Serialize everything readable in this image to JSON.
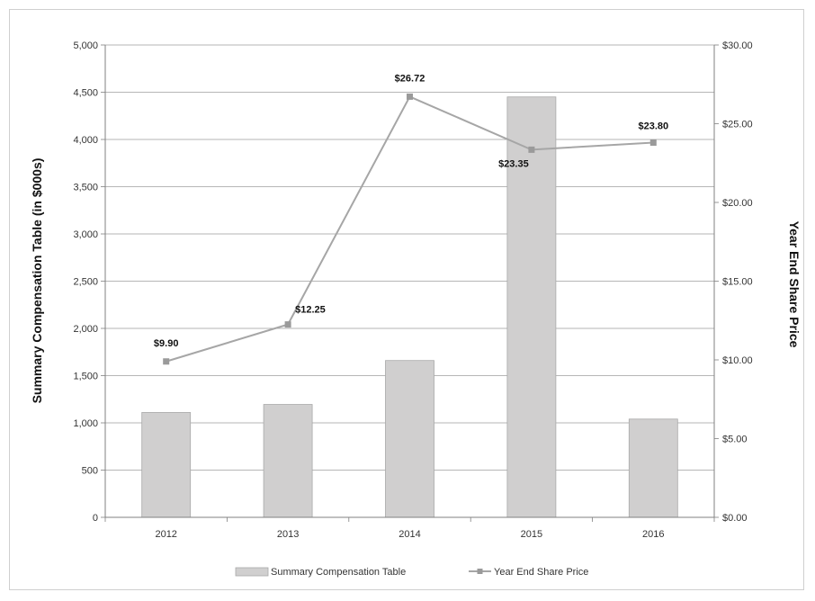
{
  "chart_data": {
    "type": "bar",
    "categories": [
      "2012",
      "2013",
      "2014",
      "2015",
      "2016"
    ],
    "series": [
      {
        "name": "Summary Compensation Table",
        "type": "bar",
        "axis": "left",
        "values": [
          1110,
          1195,
          1660,
          4450,
          1040
        ]
      },
      {
        "name": "Year End Share Price",
        "type": "line",
        "axis": "right",
        "values": [
          9.9,
          12.25,
          26.72,
          23.35,
          23.8
        ],
        "labels": [
          "$9.90",
          "$12.25",
          "$26.72",
          "$23.35",
          "$23.80"
        ]
      }
    ],
    "ylabel": "Summary Compensation Table (in $000s)",
    "y2label": "Year End Share Price",
    "ylim": [
      0,
      5000
    ],
    "y2lim": [
      0,
      30
    ],
    "yticks": [
      "0",
      "500",
      "1,000",
      "1,500",
      "2,000",
      "2,500",
      "3,000",
      "3,500",
      "4,000",
      "4,500",
      "5,000"
    ],
    "y2ticks": [
      "$0.00",
      "$5.00",
      "$10.00",
      "$15.00",
      "$20.00",
      "$25.00",
      "$30.00"
    ],
    "grid": true,
    "legend_position": "bottom",
    "legend": [
      "Summary Compensation Table",
      "Year End Share Price"
    ],
    "colors": {
      "bar_fill": "#d0cfcf",
      "bar_stroke": "#a8a8a8",
      "line": "#a6a6a6",
      "marker": "#9a9a9a",
      "grid": "#9e9e9e",
      "axis": "#808080"
    }
  }
}
